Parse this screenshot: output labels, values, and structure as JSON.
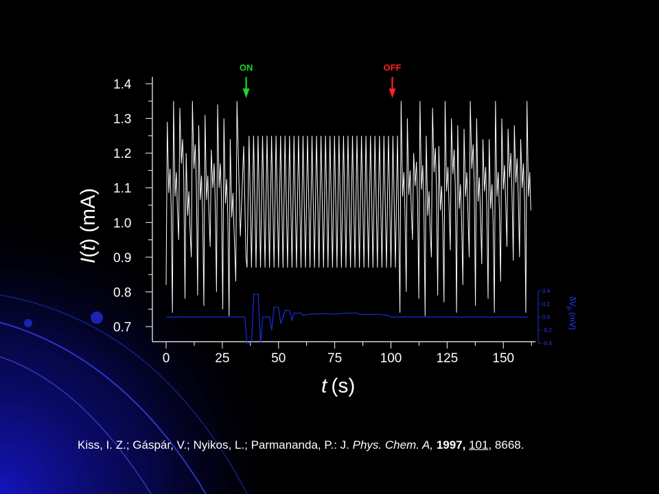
{
  "chart_data": {
    "type": "line",
    "xlabel_italic": "t",
    "xlabel_unit": "(s)",
    "ylabel_italic": "I",
    "ylabel_paren_open": "(",
    "ylabel_italic_inner": "t",
    "ylabel_unit": ") (mA)",
    "xlim": [
      -3,
      163
    ],
    "ylim": [
      0.65,
      1.45
    ],
    "x_ticks": [
      "0",
      "25",
      "50",
      "75",
      "100",
      "125",
      "150"
    ],
    "y_ticks": [
      "0.7",
      "0.8",
      "0.9",
      "1.0",
      "1.1",
      "1.2",
      "1.3",
      "1.4"
    ],
    "annotations": [
      {
        "text": "ON",
        "x": 35,
        "color": "#1fd12b"
      },
      {
        "text": "OFF",
        "x": 100,
        "color": "#ff2020"
      }
    ],
    "right_axis": {
      "label_prefix": "δV",
      "label_sub": "p",
      "label_unit": " (mV)",
      "ylim": [
        -0.4,
        0.4
      ],
      "ticks": [
        "0.4",
        "0.2",
        "0.0",
        "-0.2",
        "-0.4"
      ],
      "color": "#1a2ee0"
    },
    "series": [
      {
        "name": "I(t)",
        "color": "#ffffff",
        "segments": [
          {
            "t_start": 0,
            "t_end": 31,
            "period": 2.8,
            "mode": "chaotic",
            "max_values": [
              1.29,
              1.35,
              1.33,
              1.2,
              1.35,
              1.28,
              1.31,
              1.21,
              1.34,
              1.3,
              1.24
            ],
            "min_values": [
              0.82,
              0.74,
              0.95,
              0.78,
              0.9,
              0.79,
              0.76,
              0.93,
              0.8,
              0.75,
              0.73
            ]
          },
          {
            "t_start": 31,
            "t_end": 35,
            "note": "peak 1.35 at t=31"
          },
          {
            "t_start": 36,
            "t_end": 104,
            "period": 2.0,
            "mode": "periodic",
            "max": 1.25,
            "min": 0.87
          },
          {
            "t_start": 104,
            "t_end": 161,
            "period": 2.8,
            "mode": "chaotic",
            "max_values": [
              1.35,
              1.3,
              1.2,
              1.35,
              1.25,
              1.33,
              1.22,
              1.35,
              1.3,
              1.28,
              1.27,
              1.35,
              1.3,
              1.24,
              1.24,
              1.35,
              1.3,
              1.27,
              1.28,
              1.24
            ],
            "min_values": [
              0.74,
              0.8,
              0.95,
              0.78,
              0.73,
              0.9,
              0.79,
              0.77,
              0.92,
              0.74,
              0.82,
              0.9,
              0.76,
              0.88,
              0.78,
              0.74,
              0.83,
              0.93,
              0.89,
              0.9
            ]
          }
        ]
      },
      {
        "name": "δVp",
        "color": "#1a2ee0",
        "axis": "right",
        "points": [
          [
            0,
            0
          ],
          [
            35,
            0
          ],
          [
            36,
            -0.4
          ],
          [
            38,
            -0.4
          ],
          [
            39,
            0.35
          ],
          [
            41,
            0.35
          ],
          [
            42,
            -0.4
          ],
          [
            43,
            0.0
          ],
          [
            46,
            0.0
          ],
          [
            47,
            -0.2
          ],
          [
            48,
            0.15
          ],
          [
            50,
            0.15
          ],
          [
            51,
            -0.1
          ],
          [
            53,
            0.1
          ],
          [
            55,
            0.1
          ],
          [
            56,
            -0.05
          ],
          [
            57,
            0.06
          ],
          [
            60,
            0.06
          ],
          [
            61,
            0.02
          ],
          [
            63,
            0.04
          ],
          [
            68,
            0.05
          ],
          [
            73,
            0.05
          ],
          [
            74,
            0.04
          ],
          [
            80,
            0.06
          ],
          [
            85,
            0.06
          ],
          [
            86,
            0.04
          ],
          [
            95,
            0.04
          ],
          [
            99,
            0.02
          ],
          [
            100,
            0.0
          ],
          [
            161,
            0.0
          ]
        ]
      }
    ]
  },
  "citation": {
    "authors": "Kiss, I. Z.; Gáspár, V.; Nyikos, L.; Parmananda, P.: J. ",
    "journal": "Phys. Chem. A,",
    "year": " 1997,",
    "volume": "101",
    "pages": ", 8668."
  }
}
